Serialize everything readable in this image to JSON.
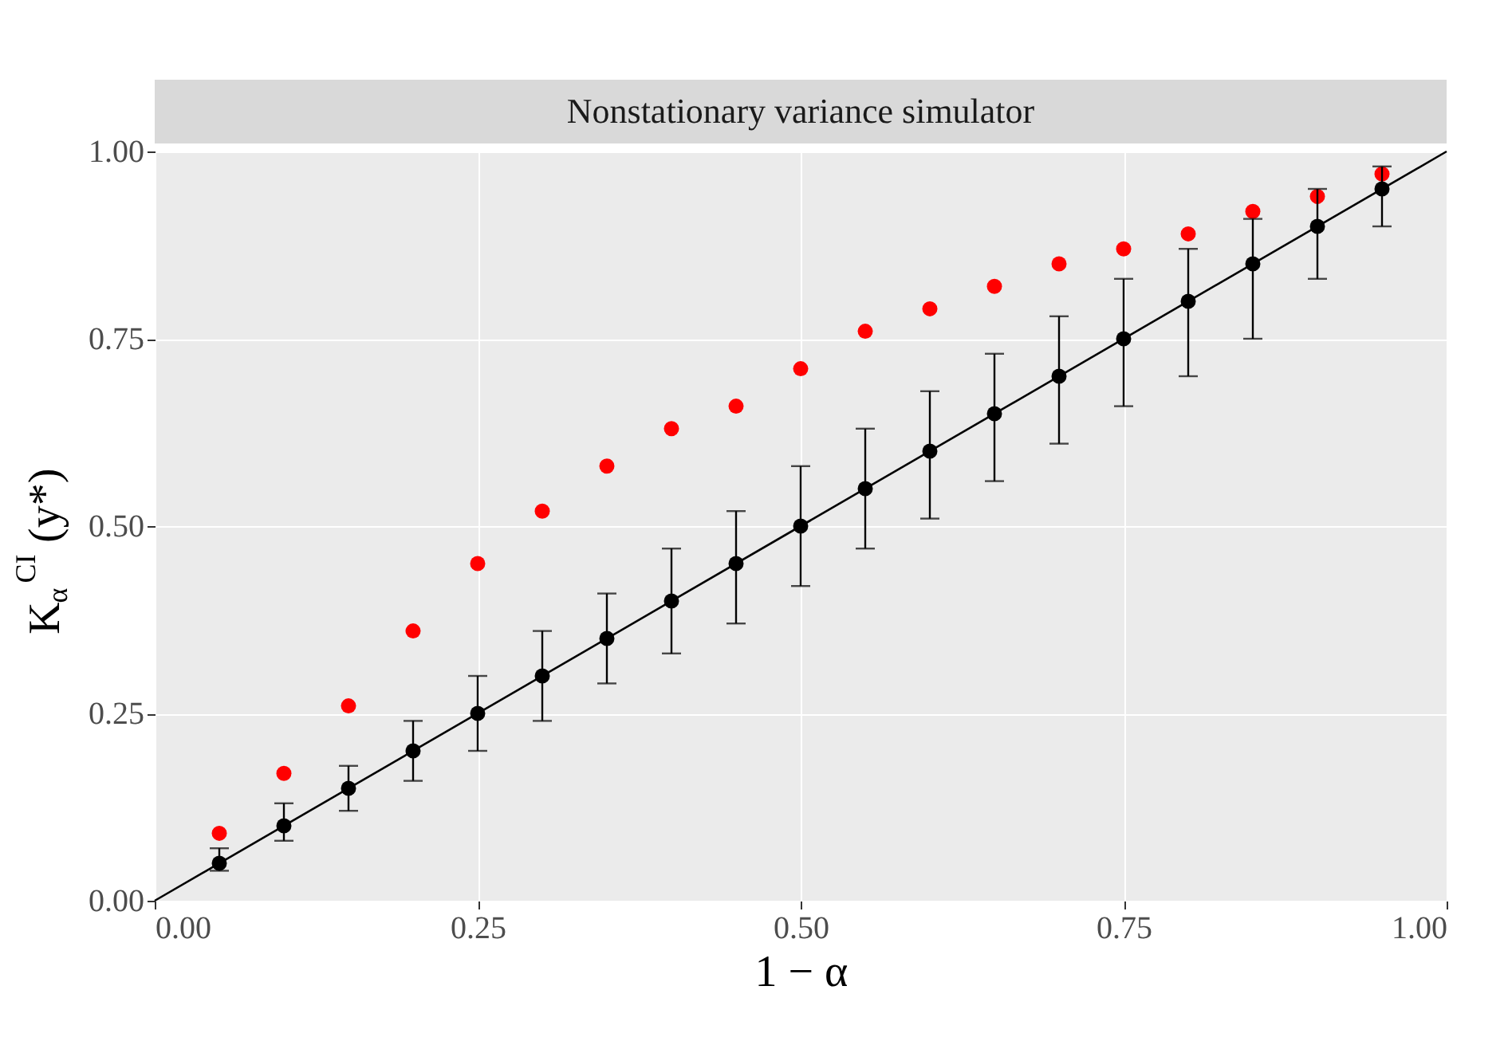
{
  "chart_data": {
    "type": "scatter",
    "title": "Nonstationary variance simulator",
    "xlabel": "1 − α",
    "ylabel": "K$_{α}$$^{CI}$(y*)",
    "x": [
      0.05,
      0.1,
      0.15,
      0.2,
      0.25,
      0.3,
      0.35,
      0.4,
      0.45,
      0.5,
      0.55,
      0.6,
      0.65,
      0.7,
      0.75,
      0.8,
      0.85,
      0.9,
      0.95
    ],
    "series": [
      {
        "type": "line",
        "color": "#000000",
        "x": [
          0,
          1
        ],
        "values": [
          0,
          1
        ]
      },
      {
        "color": "#ff0000",
        "marker": "circle",
        "values": [
          0.09,
          0.17,
          0.26,
          0.36,
          0.45,
          0.52,
          0.58,
          0.63,
          0.66,
          0.71,
          0.76,
          0.79,
          0.82,
          0.85,
          0.87,
          0.89,
          0.92,
          0.94,
          0.97
        ]
      },
      {
        "color": "#000000",
        "marker": "circle",
        "values": [
          0.05,
          0.1,
          0.15,
          0.2,
          0.25,
          0.3,
          0.35,
          0.4,
          0.45,
          0.5,
          0.55,
          0.6,
          0.65,
          0.7,
          0.75,
          0.8,
          0.85,
          0.9,
          0.95
        ],
        "errors": [
          [
            0.04,
            0.07
          ],
          [
            0.08,
            0.13
          ],
          [
            0.12,
            0.18
          ],
          [
            0.16,
            0.24
          ],
          [
            0.2,
            0.3
          ],
          [
            0.24,
            0.36
          ],
          [
            0.29,
            0.41
          ],
          [
            0.33,
            0.47
          ],
          [
            0.37,
            0.52
          ],
          [
            0.42,
            0.58
          ],
          [
            0.47,
            0.63
          ],
          [
            0.51,
            0.68
          ],
          [
            0.56,
            0.73
          ],
          [
            0.61,
            0.78
          ],
          [
            0.66,
            0.83
          ],
          [
            0.7,
            0.87
          ],
          [
            0.75,
            0.91
          ],
          [
            0.83,
            0.95
          ],
          [
            0.9,
            0.98
          ]
        ]
      }
    ],
    "xlim": [
      0,
      1
    ],
    "ylim": [
      0,
      1
    ],
    "xticks": [
      {
        "value": 0,
        "label": "0.00"
      },
      {
        "value": 0.25,
        "label": "0.25"
      },
      {
        "value": 0.5,
        "label": "0.50"
      },
      {
        "value": 0.75,
        "label": "0.75"
      },
      {
        "value": 1,
        "label": "1.00"
      }
    ],
    "yticks": [
      {
        "value": 0,
        "label": "0.00"
      },
      {
        "value": 0.25,
        "label": "0.25"
      },
      {
        "value": 0.5,
        "label": "0.50"
      },
      {
        "value": 0.75,
        "label": "0.75"
      },
      {
        "value": 1,
        "label": "1.00"
      }
    ],
    "grid": true
  }
}
